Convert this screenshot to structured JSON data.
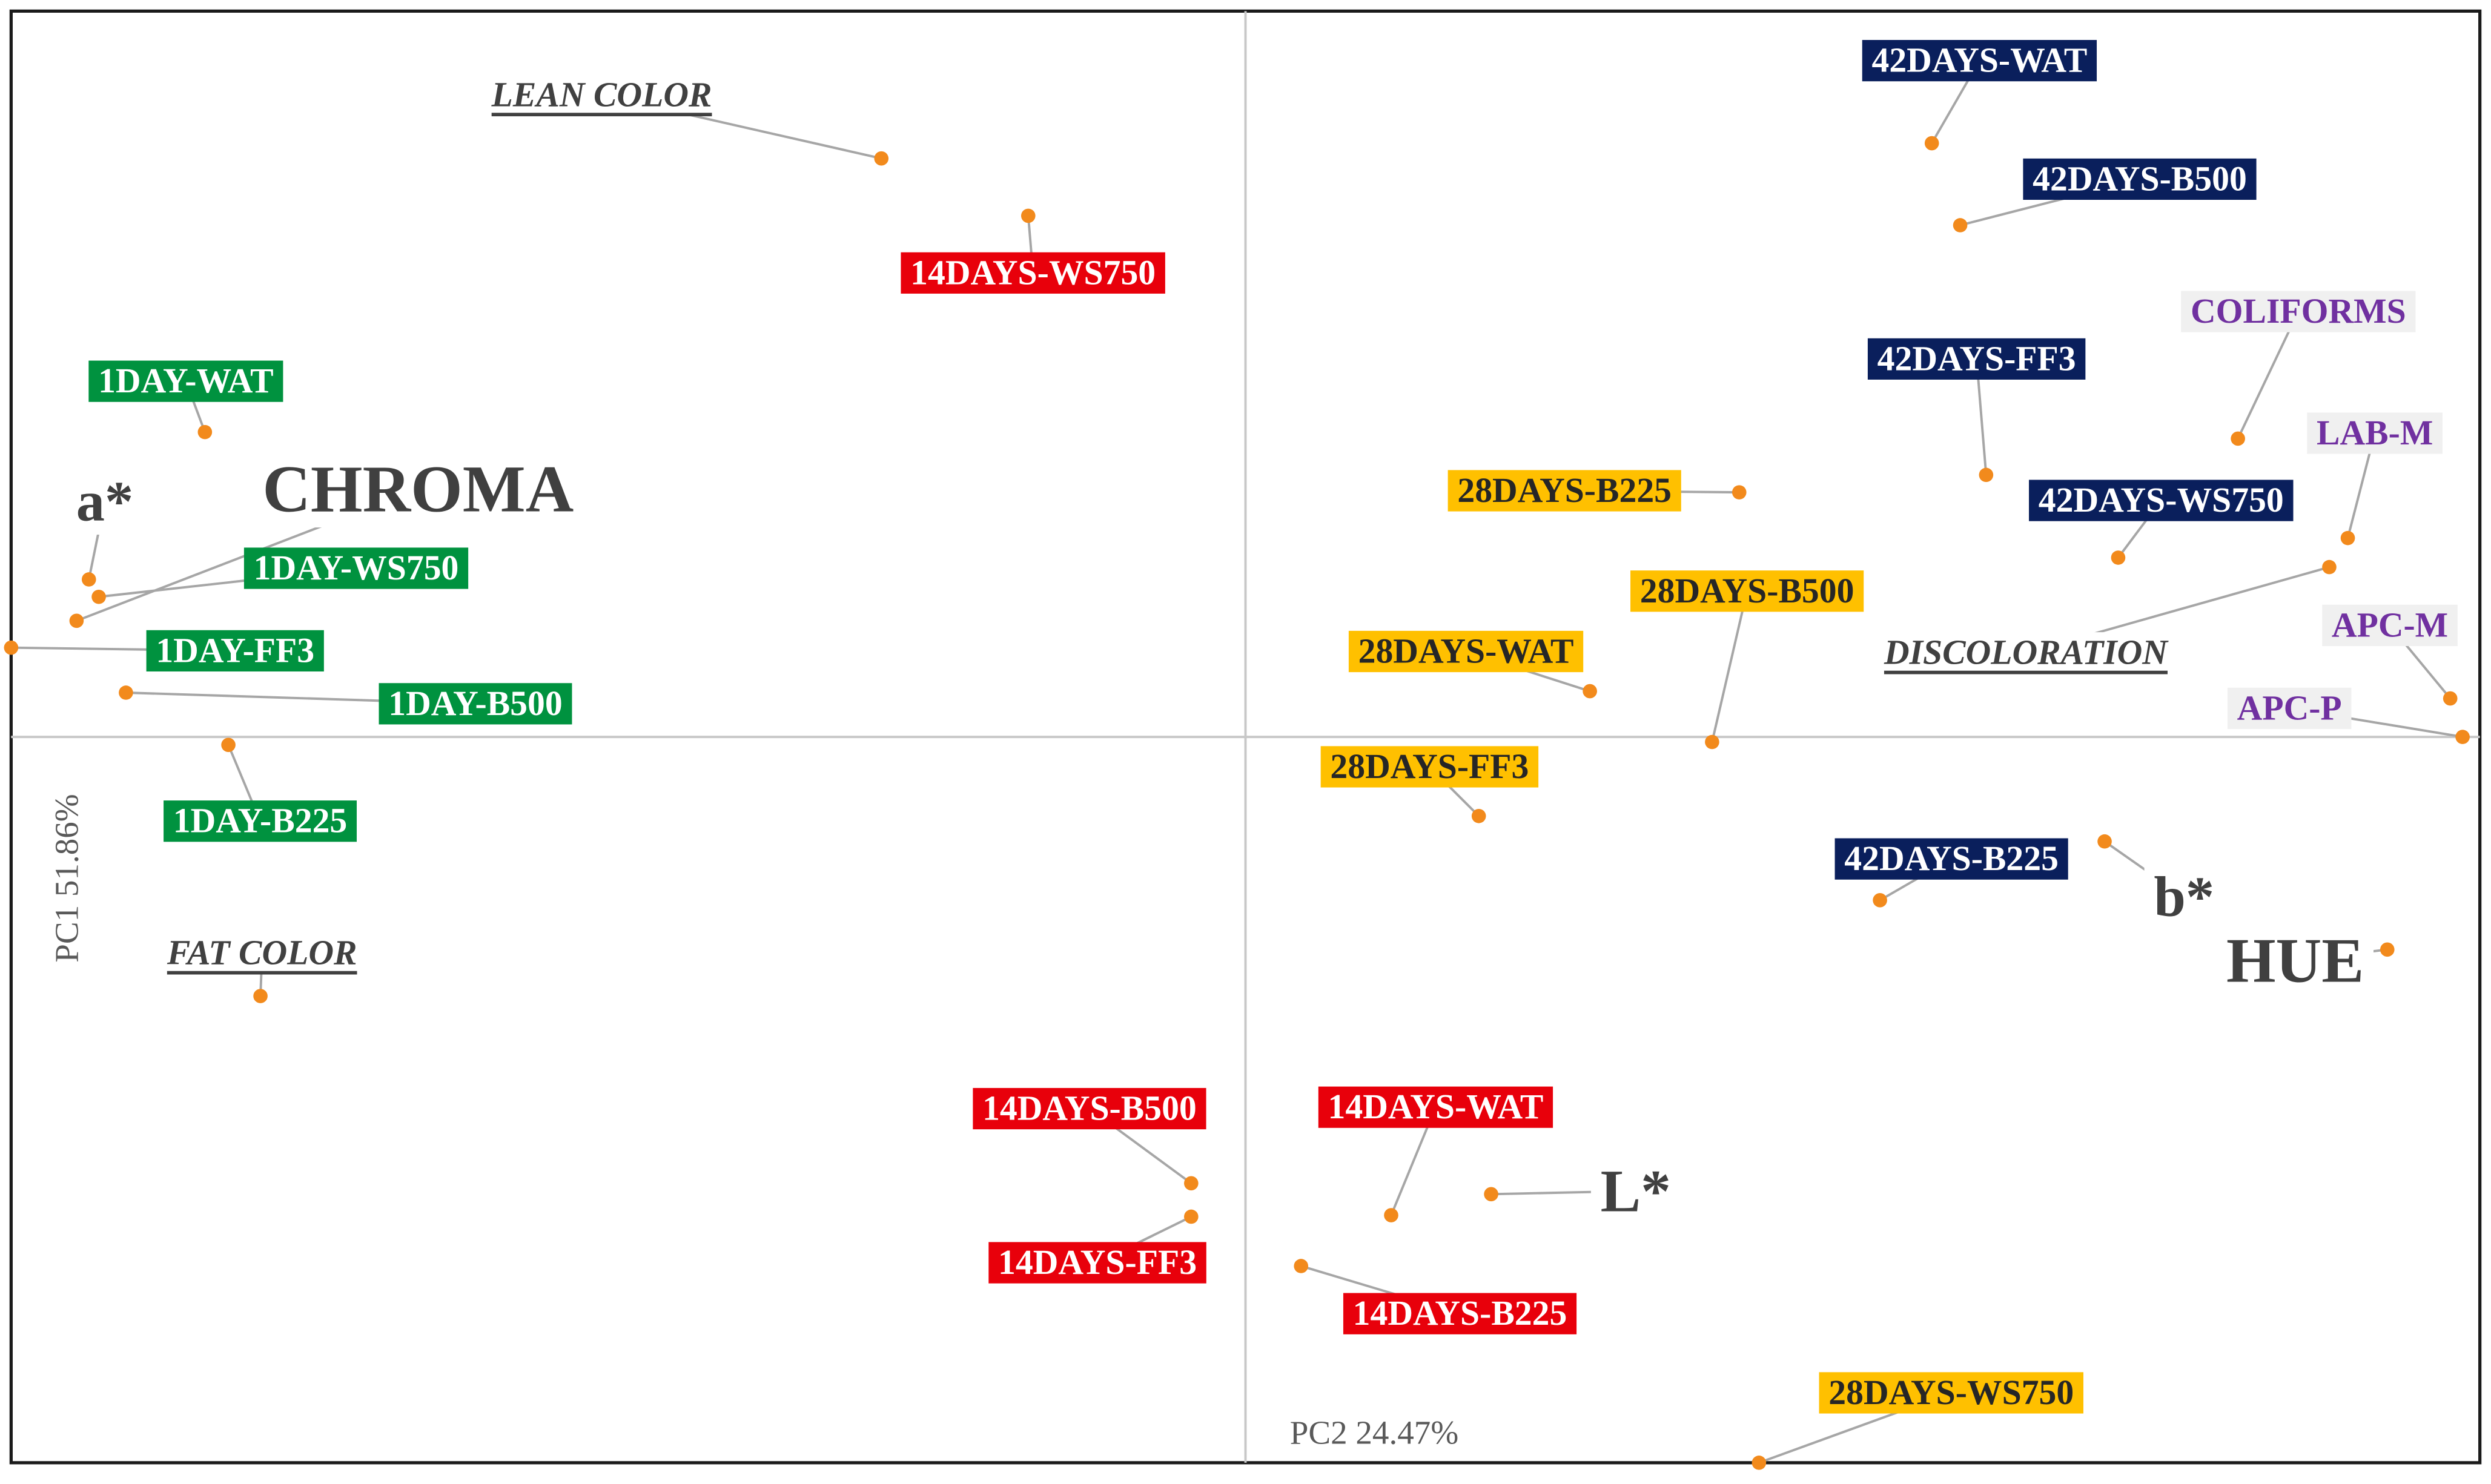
{
  "chart_data": {
    "type": "scatter",
    "xlabel": "PC2 24.47%",
    "ylabel": "PC1 51.86%",
    "xlim": [
      -1,
      1
    ],
    "ylim": [
      -1,
      1
    ],
    "grid": false,
    "marker_color": "#f28a1c",
    "series": [
      {
        "color": "#00923f",
        "text_color": "#ffffff",
        "label_style": "box",
        "labels": [
          "1DAY-WAT",
          "1DAY-WS750",
          "1DAY-FF3",
          "1DAY-B500",
          "1DAY-B225"
        ],
        "x": [
          -0.843,
          -0.929,
          -1.0,
          -0.907,
          -0.824
        ],
        "y": [
          0.42,
          0.193,
          0.123,
          0.061,
          -0.011
        ]
      },
      {
        "color": "#e8000b",
        "text_color": "#ffffff",
        "label_style": "box",
        "labels": [
          "14DAYS-WS750",
          "14DAYS-B500",
          "14DAYS-FF3",
          "14DAYS-WAT",
          "14DAYS-B225"
        ],
        "x": [
          -0.176,
          -0.044,
          -0.044,
          0.118,
          0.045
        ],
        "y": [
          0.718,
          -0.615,
          -0.661,
          -0.659,
          -0.729
        ]
      },
      {
        "color": "#ffc000",
        "text_color": "#262626",
        "label_style": "box",
        "labels": [
          "28DAYS-B225",
          "28DAYS-B500",
          "28DAYS-WAT",
          "28DAYS-FF3",
          "28DAYS-WS750"
        ],
        "x": [
          0.4,
          0.378,
          0.279,
          0.189,
          0.416
        ],
        "y": [
          0.337,
          -0.007,
          0.063,
          -0.109,
          -1.0
        ]
      },
      {
        "color": "#0a1f5c",
        "text_color": "#ffffff",
        "label_style": "box",
        "labels": [
          "42DAYS-WAT",
          "42DAYS-B500",
          "42DAYS-FF3",
          "42DAYS-WS750",
          "42DAYS-B225"
        ],
        "x": [
          0.556,
          0.579,
          0.6,
          0.707,
          0.514
        ],
        "y": [
          0.818,
          0.705,
          0.361,
          0.247,
          -0.225
        ]
      },
      {
        "color": "#f0f0f0",
        "text_color": "#7030a0",
        "label_style": "box",
        "labels": [
          "COLIFORMS",
          "LAB-M",
          "APC-M",
          "APC-P"
        ],
        "x": [
          0.804,
          0.893,
          0.976,
          0.986
        ],
        "y": [
          0.411,
          0.274,
          0.053,
          0.0
        ]
      },
      {
        "color": "none",
        "text_color": "#404040",
        "label_style": "underline",
        "labels": [
          "LEAN COLOR",
          "FAT COLOR",
          "DISCOLORATION"
        ],
        "x": [
          -0.295,
          -0.798,
          0.878
        ],
        "y": [
          0.797,
          -0.357,
          0.234
        ]
      },
      {
        "color": "none",
        "text_color": "#404040",
        "label_style": "large",
        "labels": [
          "a*",
          "CHROMA",
          "b*",
          "HUE",
          "L*"
        ],
        "x": [
          -0.937,
          -0.947,
          0.696,
          0.925,
          0.199
        ],
        "y": [
          0.217,
          0.16,
          -0.144,
          -0.293,
          -0.63
        ]
      }
    ]
  }
}
